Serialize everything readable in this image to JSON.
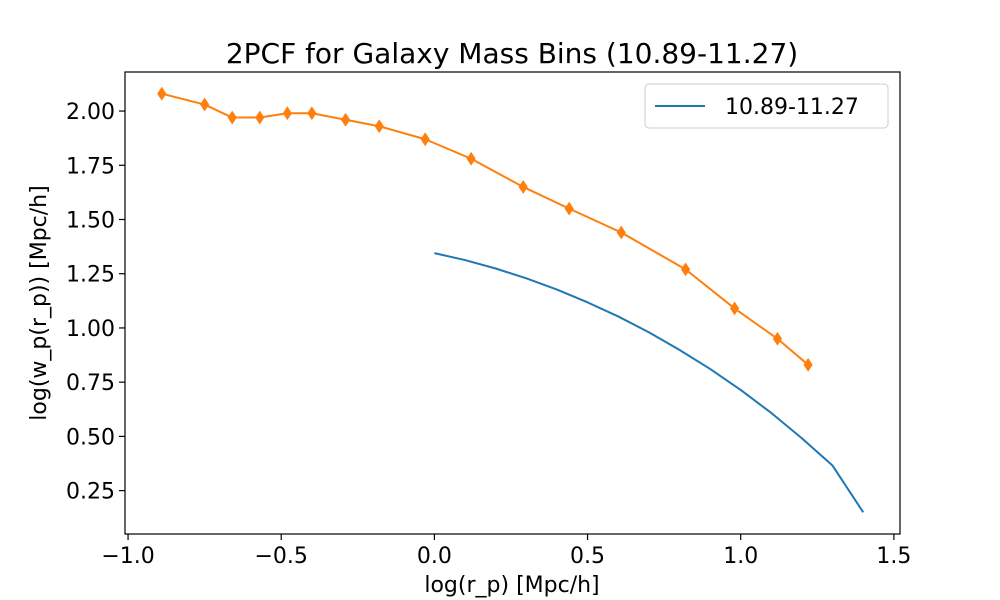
{
  "chart_data": {
    "type": "line",
    "title": "2PCF for Galaxy Mass Bins (10.89-11.27)",
    "xlabel": "log(r_p) [Mpc/h]",
    "ylabel": "log(w_p(r_p)) [Mpc/h]",
    "xlim": [
      -1.01,
      1.52
    ],
    "ylim": [
      0.05,
      2.18
    ],
    "xticks": [
      -1.0,
      -0.5,
      0.0,
      0.5,
      1.0,
      1.5
    ],
    "xtick_labels": [
      "−1.0",
      "−0.5",
      "0.0",
      "0.5",
      "1.0",
      "1.5"
    ],
    "yticks": [
      0.25,
      0.5,
      0.75,
      1.0,
      1.25,
      1.5,
      1.75,
      2.0
    ],
    "ytick_labels": [
      "0.25",
      "0.50",
      "0.75",
      "1.00",
      "1.25",
      "1.50",
      "1.75",
      "2.00"
    ],
    "grid": false,
    "legend_position": "top-right",
    "series": [
      {
        "name": "10.89-11.27",
        "color": "#1f77b4",
        "marker": "none",
        "x": [
          0.0,
          0.1,
          0.2,
          0.3,
          0.4,
          0.5,
          0.6,
          0.7,
          0.8,
          0.9,
          1.0,
          1.1,
          1.2,
          1.3,
          1.4
        ],
        "y": [
          1.345,
          1.313,
          1.274,
          1.229,
          1.177,
          1.118,
          1.053,
          0.98,
          0.899,
          0.811,
          0.714,
          0.608,
          0.491,
          0.365,
          0.15
        ]
      },
      {
        "color": "#ff7f0e",
        "marker": "thin-diamond",
        "x": [
          -0.89,
          -0.75,
          -0.66,
          -0.57,
          -0.48,
          -0.4,
          -0.29,
          -0.18,
          -0.03,
          0.12,
          0.29,
          0.44,
          0.61,
          0.82,
          0.98,
          1.12,
          1.22
        ],
        "y": [
          2.08,
          2.03,
          1.97,
          1.97,
          1.99,
          1.99,
          1.96,
          1.93,
          1.87,
          1.78,
          1.65,
          1.55,
          1.44,
          1.27,
          1.09,
          0.95,
          0.83
        ]
      }
    ]
  }
}
